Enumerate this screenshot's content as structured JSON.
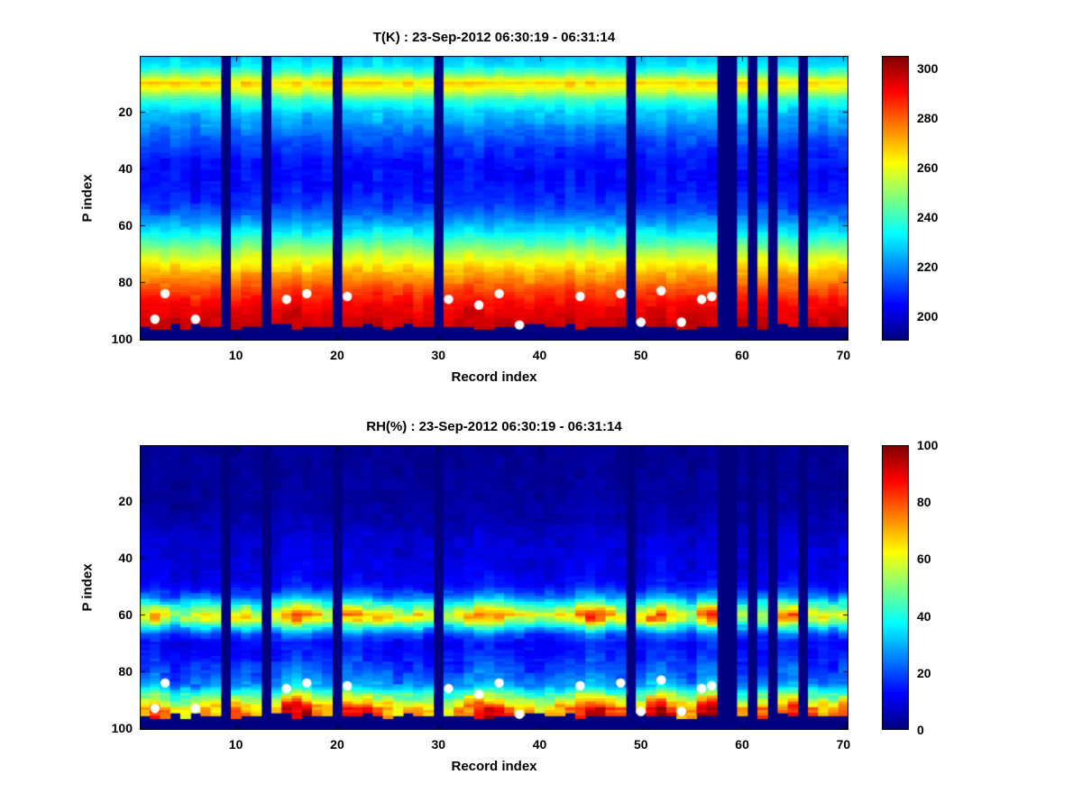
{
  "figure": {
    "background": "#ffffff",
    "colormap": "jet"
  },
  "chart_data": [
    {
      "type": "heatmap",
      "title": "T(K) : 23-Sep-2012 06:30:19 - 06:31:14",
      "xlabel": "Record index",
      "ylabel": "P index",
      "colormap": "jet",
      "y_axis_reversed": true,
      "n_records": 70,
      "n_levels": 100,
      "x_ticks": [
        10,
        20,
        30,
        40,
        50,
        60,
        70
      ],
      "y_ticks": [
        20,
        40,
        60,
        80,
        100
      ],
      "clim": [
        190,
        305
      ],
      "colorbar_ticks": [
        200,
        220,
        240,
        260,
        280,
        300
      ],
      "profile": {
        "p": [
          1,
          4,
          7,
          10,
          13,
          16,
          20,
          24,
          28,
          32,
          38,
          44,
          50,
          54,
          58,
          62,
          66,
          70,
          74,
          78,
          82,
          86,
          90,
          94,
          96,
          100
        ],
        "v": [
          227,
          231,
          246,
          267,
          256,
          239,
          228,
          222,
          216,
          211,
          206,
          205,
          208,
          212,
          220,
          230,
          242,
          254,
          264,
          273,
          281,
          288,
          293,
          296,
          297,
          298
        ]
      },
      "noise_amp": 3,
      "noise_rel": 0,
      "record_offsets": [
        1,
        0,
        -1,
        2,
        0,
        -2,
        1,
        0,
        0,
        -1,
        2,
        1,
        0,
        -1,
        1,
        2,
        -2,
        0,
        1,
        0,
        -1,
        1,
        0,
        2,
        -1,
        0,
        1,
        -2,
        0,
        1,
        -1,
        0,
        2,
        1,
        -1,
        0,
        1,
        0,
        -2,
        1,
        0,
        -1,
        2,
        0,
        1,
        -1,
        0,
        1,
        2,
        -1,
        0,
        1,
        -2,
        0,
        1,
        0,
        -1,
        0,
        0,
        1,
        -1,
        0,
        1,
        0,
        -2,
        1,
        0,
        -1,
        1,
        0
      ],
      "gap_records": [
        9,
        13,
        20,
        30,
        49,
        58,
        59,
        61,
        63,
        66
      ],
      "surface_level": 95,
      "dots": {
        "marker": "white-filled-circle",
        "points": [
          [
            2,
            93
          ],
          [
            3,
            84
          ],
          [
            6,
            93
          ],
          [
            15,
            86
          ],
          [
            17,
            84
          ],
          [
            21,
            85
          ],
          [
            31,
            86
          ],
          [
            34,
            88
          ],
          [
            36,
            84
          ],
          [
            38,
            95
          ],
          [
            44,
            85
          ],
          [
            48,
            84
          ],
          [
            50,
            94
          ],
          [
            52,
            83
          ],
          [
            54,
            94
          ],
          [
            56,
            86
          ],
          [
            57,
            85
          ]
        ]
      }
    },
    {
      "type": "heatmap",
      "title": "RH(%) : 23-Sep-2012 06:30:19 - 06:31:14",
      "xlabel": "Record index",
      "ylabel": "P index",
      "colormap": "jet",
      "y_axis_reversed": true,
      "n_records": 70,
      "n_levels": 100,
      "x_ticks": [
        10,
        20,
        30,
        40,
        50,
        60,
        70
      ],
      "y_ticks": [
        20,
        40,
        60,
        80,
        100
      ],
      "clim": [
        0,
        100
      ],
      "colorbar_ticks": [
        0,
        20,
        40,
        60,
        80,
        100
      ],
      "profile": {
        "p": [
          1,
          20,
          28,
          34,
          40,
          46,
          50,
          54,
          57,
          60,
          62,
          64,
          67,
          70,
          74,
          78,
          82,
          85,
          88,
          91,
          93,
          95,
          100
        ],
        "v": [
          2,
          3,
          5,
          8,
          9,
          10,
          13,
          25,
          45,
          62,
          58,
          40,
          20,
          13,
          14,
          18,
          22,
          28,
          45,
          62,
          72,
          75,
          76
        ]
      },
      "noise_amp": 1.5,
      "noise_rel": 0.12,
      "record_scales": [
        1.05,
        1.1,
        0.95,
        0.8,
        0.85,
        0.9,
        1.0,
        0.95,
        1.0,
        1.0,
        1.05,
        0.9,
        1.0,
        0.95,
        1.25,
        1.3,
        1.2,
        1.1,
        1.0,
        1.0,
        1.15,
        1.2,
        1.1,
        1.05,
        1.0,
        0.9,
        0.95,
        1.0,
        0.9,
        1.0,
        0.9,
        0.95,
        1.1,
        1.2,
        1.25,
        1.15,
        1.05,
        1.0,
        0.9,
        0.85,
        0.9,
        0.95,
        1.0,
        1.2,
        1.3,
        1.25,
        1.1,
        1.0,
        1.0,
        0.95,
        1.2,
        1.3,
        1.15,
        1.0,
        0.9,
        1.2,
        1.3,
        1.0,
        1.0,
        0.9,
        1.0,
        0.95,
        1.0,
        1.15,
        1.2,
        1.0,
        1.0,
        0.95,
        0.9,
        1.05
      ],
      "gap_records": [
        9,
        13,
        20,
        30,
        49,
        58,
        59,
        61,
        63,
        66
      ],
      "surface_level": 95,
      "dots": {
        "marker": "white-filled-circle",
        "points": [
          [
            2,
            93
          ],
          [
            3,
            84
          ],
          [
            6,
            93
          ],
          [
            15,
            86
          ],
          [
            17,
            84
          ],
          [
            21,
            85
          ],
          [
            31,
            86
          ],
          [
            34,
            88
          ],
          [
            36,
            84
          ],
          [
            38,
            95
          ],
          [
            44,
            85
          ],
          [
            48,
            84
          ],
          [
            50,
            94
          ],
          [
            52,
            83
          ],
          [
            54,
            94
          ],
          [
            56,
            86
          ],
          [
            57,
            85
          ]
        ]
      }
    }
  ]
}
